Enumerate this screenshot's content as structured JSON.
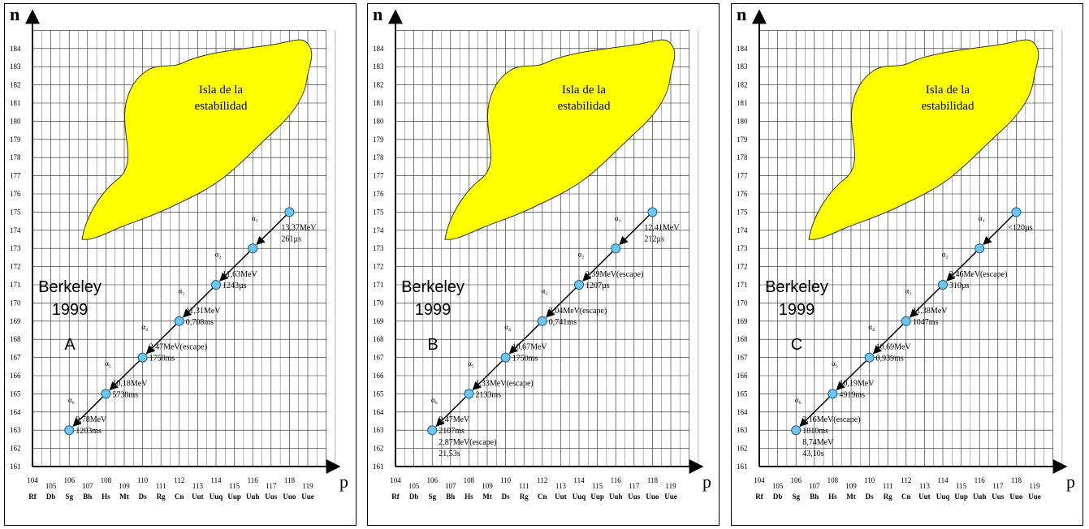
{
  "axes": {
    "n_label": "n",
    "p_label": "p",
    "n_ticks": [
      161,
      162,
      163,
      164,
      165,
      166,
      167,
      168,
      169,
      170,
      171,
      172,
      173,
      174,
      175,
      176,
      177,
      178,
      179,
      180,
      181,
      182,
      183,
      184
    ],
    "p_ticks": [
      104,
      105,
      106,
      107,
      108,
      109,
      110,
      111,
      112,
      113,
      114,
      115,
      116,
      117,
      118,
      119
    ],
    "element_symbols": [
      "Rf",
      "Db",
      "Sg",
      "Bh",
      "Hs",
      "Mt",
      "Ds",
      "Rg",
      "Cn",
      "Uut",
      "Uuq",
      "Uup",
      "Uuh",
      "Uus",
      "Uuo",
      "Uue"
    ],
    "p_range": [
      104,
      120
    ],
    "n_range": [
      161,
      185
    ]
  },
  "island_label_line1": "Isla de la",
  "island_label_line2": "estabilidad",
  "colors": {
    "island": "#ffff00",
    "node": "#6ec6f0",
    "grid": "#222222"
  },
  "chain_nuclides": [
    {
      "p": 118,
      "n": 175
    },
    {
      "p": 116,
      "n": 173
    },
    {
      "p": 114,
      "n": 171
    },
    {
      "p": 112,
      "n": 169
    },
    {
      "p": 110,
      "n": 167
    },
    {
      "p": 108,
      "n": 165
    },
    {
      "p": 106,
      "n": 163
    }
  ],
  "alpha_labels": [
    "α₁",
    "α₂",
    "α₃",
    "α₄",
    "α₅",
    "α₆"
  ],
  "panels": [
    {
      "title_line1": "Berkeley",
      "title_line2": "1999",
      "variant": "A",
      "decays": [
        {
          "energy": "13,37MeV",
          "time": "261µs"
        },
        {
          "energy": "11,63MeV",
          "time": "1243µs"
        },
        {
          "energy": "11,31MeV",
          "time": "0,708ms"
        },
        {
          "energy": "2,47MeV(escape)",
          "time": "1750ms"
        },
        {
          "energy": "10,18MeV",
          "time": "5738ms"
        },
        {
          "energy": "9,78MeV",
          "time": "1203ms"
        }
      ]
    },
    {
      "title_line1": "Berkeley",
      "title_line2": "1999",
      "variant": "B",
      "decays": [
        {
          "energy": "12,41MeV",
          "time": "212µs"
        },
        {
          "energy": "2,39MeV(escape)",
          "time": "1207µs"
        },
        {
          "energy": "3,04MeV(escape)",
          "time": "0,741ms"
        },
        {
          "energy": "10,67MeV",
          "time": "1750ms"
        },
        {
          "energy": "1,33MeV(escape)",
          "time": "2133ms"
        },
        {
          "energy": "9,47MeV",
          "time": "2107ms"
        },
        {
          "energy": "2,87MeV(escape)",
          "time": "21,53s"
        }
      ]
    },
    {
      "title_line1": "Berkeley",
      "title_line2": "1999",
      "variant": "C",
      "decays": [
        {
          "energy": "<120µs",
          "time": ""
        },
        {
          "energy": "3,46MeV(escape)",
          "time": "310µs"
        },
        {
          "energy": "11,38MeV",
          "time": "1047ms"
        },
        {
          "energy": "10,69MeV",
          "time": "0,939ms"
        },
        {
          "energy": "10,19MeV",
          "time": "4919ms"
        },
        {
          "energy": "2,16MeV(escape)",
          "time": "1810ms"
        },
        {
          "energy": "8,74MeV",
          "time": "43,10s"
        }
      ]
    }
  ]
}
